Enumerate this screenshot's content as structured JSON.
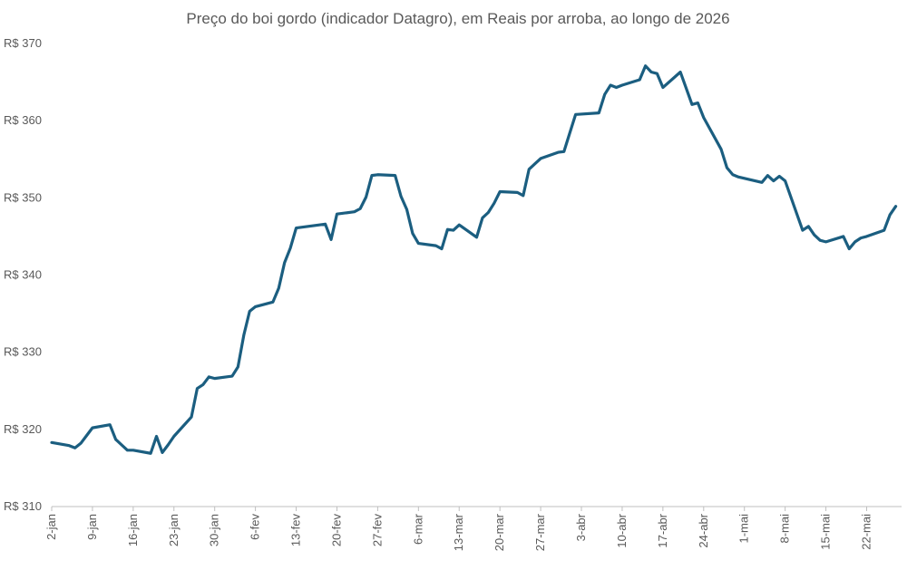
{
  "chart_data": {
    "type": "line",
    "title": "Preço do boi gordo (indicador Datagro), em Reais por arroba, ao longo de 2026",
    "xlabel": "",
    "ylabel": "",
    "ylim": [
      310,
      370
    ],
    "yticks": [
      310,
      320,
      330,
      340,
      350,
      360,
      370
    ],
    "ytick_labels": [
      "R$ 310",
      "R$ 320",
      "R$ 330",
      "R$ 340",
      "R$ 350",
      "R$ 360",
      "R$ 370"
    ],
    "xlim": [
      "2026-01-02",
      "2026-05-28"
    ],
    "xticks": [
      "2026-01-02",
      "2026-01-09",
      "2026-01-16",
      "2026-01-23",
      "2026-01-30",
      "2026-02-06",
      "2026-02-13",
      "2026-02-20",
      "2026-02-27",
      "2026-03-06",
      "2026-03-13",
      "2026-03-20",
      "2026-03-27",
      "2026-04-03",
      "2026-04-10",
      "2026-04-17",
      "2026-04-24",
      "2026-05-01",
      "2026-05-08",
      "2026-05-15",
      "2026-05-22"
    ],
    "xtick_labels": [
      "2-jan",
      "9-jan",
      "16-jan",
      "23-jan",
      "30-jan",
      "6-fev",
      "13-fev",
      "20-fev",
      "27-fev",
      "6-mar",
      "13-mar",
      "20-mar",
      "27-mar",
      "3-abr",
      "10-abr",
      "17-abr",
      "24-abr",
      "1-mai",
      "8-mai",
      "15-mai",
      "22-mai"
    ],
    "grid": false,
    "legend": "none",
    "color": "#1b5e80",
    "series": [
      {
        "x": [
          "2026-01-02",
          "2026-01-05",
          "2026-01-06",
          "2026-01-07",
          "2026-01-08",
          "2026-01-09",
          "2026-01-12",
          "2026-01-13",
          "2026-01-14",
          "2026-01-15",
          "2026-01-16",
          "2026-01-19",
          "2026-01-20",
          "2026-01-21",
          "2026-01-22",
          "2026-01-23",
          "2026-01-26",
          "2026-01-27",
          "2026-01-28",
          "2026-01-29",
          "2026-01-30",
          "2026-02-02",
          "2026-02-03",
          "2026-02-04",
          "2026-02-05",
          "2026-02-06",
          "2026-02-09",
          "2026-02-10",
          "2026-02-11",
          "2026-02-12",
          "2026-02-13",
          "2026-02-18",
          "2026-02-19",
          "2026-02-20",
          "2026-02-23",
          "2026-02-24",
          "2026-02-25",
          "2026-02-26",
          "2026-02-27",
          "2026-03-02",
          "2026-03-03",
          "2026-03-04",
          "2026-03-05",
          "2026-03-06",
          "2026-03-09",
          "2026-03-10",
          "2026-03-11",
          "2026-03-12",
          "2026-03-13",
          "2026-03-16",
          "2026-03-17",
          "2026-03-18",
          "2026-03-19",
          "2026-03-20",
          "2026-03-23",
          "2026-03-24",
          "2026-03-25",
          "2026-03-26",
          "2026-03-27",
          "2026-03-30",
          "2026-03-31",
          "2026-04-01",
          "2026-04-02",
          "2026-04-06",
          "2026-04-07",
          "2026-04-08",
          "2026-04-09",
          "2026-04-10",
          "2026-04-13",
          "2026-04-14",
          "2026-04-15",
          "2026-04-16",
          "2026-04-17",
          "2026-04-20",
          "2026-04-22",
          "2026-04-23",
          "2026-04-24",
          "2026-04-27",
          "2026-04-28",
          "2026-04-29",
          "2026-04-30",
          "2026-05-04",
          "2026-05-05",
          "2026-05-06",
          "2026-05-07",
          "2026-05-08",
          "2026-05-11",
          "2026-05-12",
          "2026-05-13",
          "2026-05-14",
          "2026-05-15",
          "2026-05-18",
          "2026-05-19",
          "2026-05-20",
          "2026-05-21",
          "2026-05-22",
          "2026-05-25",
          "2026-05-26",
          "2026-05-27"
        ],
        "values": [
          318.3,
          317.9,
          317.6,
          318.2,
          319.2,
          320.2,
          320.6,
          318.7,
          318.0,
          317.3,
          317.3,
          316.9,
          319.1,
          317.0,
          318.0,
          319.1,
          321.6,
          325.3,
          325.8,
          326.8,
          326.6,
          326.9,
          328.1,
          332.2,
          335.3,
          335.9,
          336.5,
          338.3,
          341.6,
          343.5,
          346.1,
          346.6,
          344.6,
          347.9,
          348.2,
          348.6,
          350.1,
          352.9,
          353.0,
          352.9,
          350.2,
          348.5,
          345.4,
          344.1,
          343.8,
          343.4,
          345.9,
          345.8,
          346.5,
          344.9,
          347.4,
          348.1,
          349.3,
          350.8,
          350.7,
          350.3,
          353.7,
          354.4,
          355.1,
          355.9,
          356.0,
          358.4,
          360.8,
          361.0,
          363.4,
          364.6,
          364.3,
          364.6,
          365.3,
          367.1,
          366.3,
          366.1,
          364.3,
          366.3,
          362.1,
          362.3,
          360.4,
          356.3,
          353.9,
          353.0,
          352.7,
          352.0,
          352.9,
          352.2,
          352.8,
          352.2,
          345.8,
          346.3,
          345.2,
          344.5,
          344.3,
          345.0,
          343.4,
          344.3,
          344.8,
          345.0,
          345.8,
          347.8,
          348.9
        ]
      }
    ]
  }
}
